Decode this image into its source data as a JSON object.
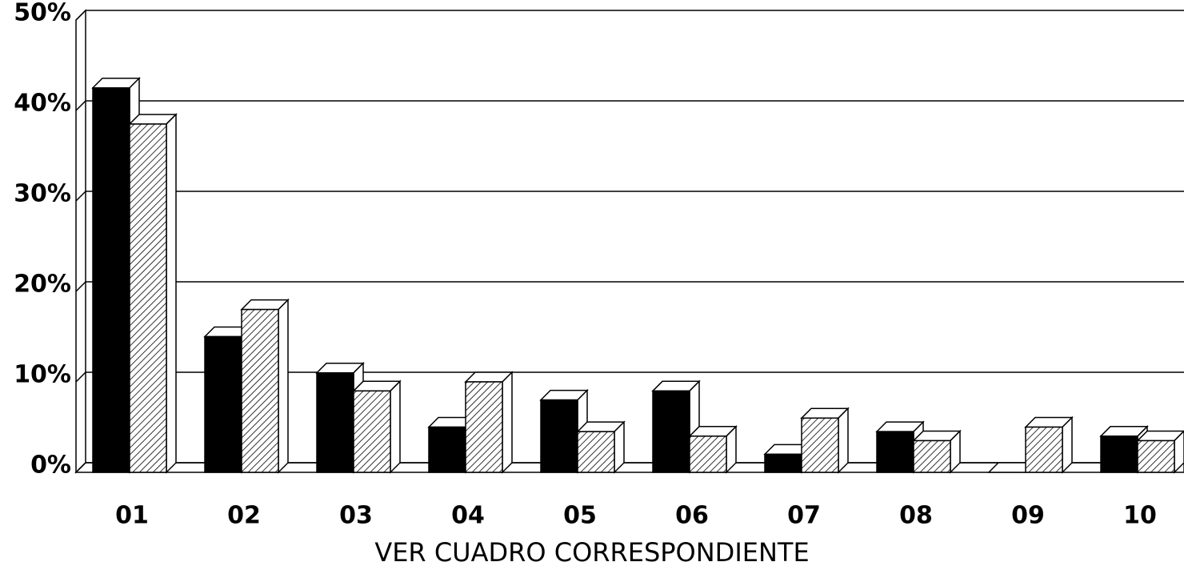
{
  "chart_data": {
    "type": "bar3d",
    "xlabel": "VER CUADRO CORRESPONDIENTE",
    "categories": [
      "01",
      "02",
      "03",
      "04",
      "05",
      "06",
      "07",
      "08",
      "09",
      "10"
    ],
    "series": [
      {
        "color": "#000000",
        "values": [
          42.5,
          15,
          11,
          5,
          8,
          9,
          2,
          4.5,
          0,
          4
        ]
      },
      {
        "color": "#000000",
        "pattern": "hatch",
        "values": [
          38.5,
          18,
          9,
          10,
          4.5,
          4,
          6,
          3.5,
          5,
          3.5
        ]
      }
    ],
    "ylim": [
      0,
      50
    ],
    "yticks": [
      {
        "value": 0,
        "label": "0%"
      },
      {
        "value": 10,
        "label": "10%"
      },
      {
        "value": 20,
        "label": "20%"
      },
      {
        "value": 30,
        "label": "30%"
      },
      {
        "value": 40,
        "label": "40%"
      },
      {
        "value": 50,
        "label": "50%"
      }
    ],
    "grid": true
  }
}
